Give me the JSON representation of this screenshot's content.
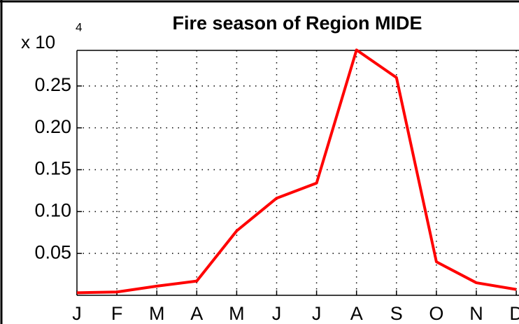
{
  "chart_data": {
    "type": "line",
    "title": "Fire season of Region MIDE",
    "y_multiplier": {
      "base": "x 10",
      "exponent": "4"
    },
    "categories": [
      "J",
      "F",
      "M",
      "A",
      "M",
      "J",
      "J",
      "A",
      "S",
      "O",
      "N",
      "D"
    ],
    "series": [
      {
        "name": "Fire season",
        "color": "#ff0000",
        "values": [
          0.003,
          0.004,
          0.011,
          0.017,
          0.077,
          0.116,
          0.134,
          0.293,
          0.26,
          0.04,
          0.015,
          0.007
        ]
      }
    ],
    "ylim": [
      0,
      0.2925
    ],
    "yticks": [
      {
        "value": 0.05,
        "label": "0.05"
      },
      {
        "value": 0.1,
        "label": "0.10"
      },
      {
        "value": 0.15,
        "label": "0.15"
      },
      {
        "value": 0.2,
        "label": "0.20"
      },
      {
        "value": 0.25,
        "label": "0.25"
      }
    ],
    "grid": true
  }
}
